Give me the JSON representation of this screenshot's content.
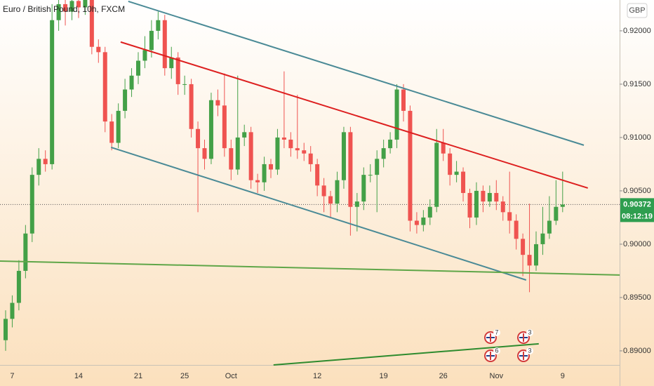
{
  "chart_data": {
    "type": "candlestick",
    "title": "Euro / British Pound, 10h, FXCM",
    "currency": "GBP",
    "categories": [
      null,
      "7",
      null,
      null,
      null,
      null,
      null,
      null,
      null,
      null,
      null,
      "14",
      null,
      null,
      null,
      null,
      null,
      null,
      null,
      null,
      "21",
      null,
      null,
      null,
      null,
      null,
      null,
      "25",
      null,
      null,
      null,
      null,
      null,
      null,
      "Oct",
      null,
      null,
      null,
      null,
      null,
      null,
      null,
      null,
      null,
      null,
      null,
      null,
      "12",
      null,
      null,
      null,
      null,
      null,
      null,
      null,
      null,
      null,
      "19",
      null,
      null,
      null,
      null,
      null,
      null,
      null,
      null,
      "26",
      null,
      null,
      null,
      null,
      null,
      null,
      null,
      "Nov",
      null,
      null,
      null,
      null,
      null,
      null,
      null,
      null,
      null,
      "9"
    ],
    "open": [
      0.891,
      0.893,
      0.8945,
      0.8975,
      0.901,
      0.9065,
      0.908,
      0.9075,
      0.921,
      0.9225,
      0.9218,
      0.9228,
      0.9222,
      0.923,
      0.9185,
      0.918,
      0.9115,
      0.9095,
      0.9125,
      0.9145,
      0.9158,
      0.9172,
      0.9182,
      0.92,
      0.921,
      0.9165,
      0.9175,
      0.915,
      0.915,
      0.9108,
      0.909,
      0.908,
      0.9135,
      0.913,
      0.909,
      0.907,
      0.91,
      0.9105,
      0.906,
      0.9058,
      0.9075,
      0.907,
      0.91,
      0.9098,
      0.909,
      0.9088,
      0.9085,
      0.9075,
      0.9055,
      0.9045,
      0.9038,
      0.906,
      0.9105,
      0.9035,
      0.904,
      0.9065,
      0.9065,
      0.908,
      0.909,
      0.9098,
      0.9145,
      0.9125,
      0.9022,
      0.9018,
      0.9025,
      0.9035,
      0.9095,
      0.9085,
      0.9065,
      0.9068,
      0.9048,
      0.9025,
      0.905,
      0.904,
      0.9048,
      0.904,
      0.903,
      0.9022,
      0.9005,
      0.899,
      0.898,
      0.9,
      0.901,
      0.9022,
      0.9035
    ],
    "high": [
      0.8938,
      0.8952,
      0.8985,
      0.9018,
      0.9072,
      0.909,
      0.9088,
      0.9225,
      0.9235,
      0.9232,
      0.9235,
      0.9233,
      0.9236,
      0.9235,
      0.9192,
      0.9185,
      0.9122,
      0.9132,
      0.9155,
      0.9165,
      0.918,
      0.9195,
      0.921,
      0.9218,
      0.9215,
      0.9185,
      0.918,
      0.9158,
      0.9155,
      0.9115,
      0.9098,
      0.9142,
      0.9145,
      0.916,
      0.9098,
      0.9158,
      0.9112,
      0.911,
      0.9066,
      0.9082,
      0.908,
      0.9108,
      0.9162,
      0.9105,
      0.914,
      0.9095,
      0.9092,
      0.908,
      0.9062,
      0.905,
      0.9068,
      0.911,
      0.911,
      0.9048,
      0.9072,
      0.9075,
      0.9088,
      0.9098,
      0.9105,
      0.915,
      0.915,
      0.913,
      0.903,
      0.9032,
      0.9042,
      0.9108,
      0.9108,
      0.909,
      0.9078,
      0.9072,
      0.9052,
      0.9058,
      0.9055,
      0.9055,
      0.906,
      0.9045,
      0.9068,
      0.9028,
      0.901,
      0.9038,
      0.9012,
      0.9035,
      0.9045,
      0.906,
      0.9068
    ],
    "low": [
      0.89,
      0.8922,
      0.8938,
      0.8968,
      0.9002,
      0.9055,
      0.9068,
      0.907,
      0.92,
      0.9205,
      0.921,
      0.9212,
      0.9215,
      0.9178,
      0.917,
      0.9105,
      0.9088,
      0.909,
      0.9118,
      0.9138,
      0.915,
      0.9165,
      0.9175,
      0.9192,
      0.9158,
      0.9155,
      0.914,
      0.914,
      0.91,
      0.903,
      0.907,
      0.9075,
      0.912,
      0.9082,
      0.906,
      0.9065,
      0.9092,
      0.9052,
      0.9048,
      0.905,
      0.9062,
      0.9065,
      0.909,
      0.9082,
      0.908,
      0.9078,
      0.9068,
      0.9045,
      0.903,
      0.9025,
      0.903,
      0.9052,
      0.9008,
      0.9012,
      0.9032,
      0.9058,
      0.903,
      0.9072,
      0.9085,
      0.909,
      0.9115,
      0.9012,
      0.901,
      0.9012,
      0.9018,
      0.903,
      0.9078,
      0.9055,
      0.9058,
      0.904,
      0.9015,
      0.9018,
      0.903,
      0.9035,
      0.9032,
      0.9022,
      0.901,
      0.8995,
      0.897,
      0.8955,
      0.8975,
      0.899,
      0.9005,
      0.9018,
      0.903
    ],
    "close": [
      0.893,
      0.8945,
      0.8975,
      0.901,
      0.9065,
      0.908,
      0.9075,
      0.921,
      0.9225,
      0.9218,
      0.9228,
      0.9222,
      0.923,
      0.9185,
      0.918,
      0.9115,
      0.9095,
      0.9125,
      0.9145,
      0.9158,
      0.9172,
      0.9182,
      0.92,
      0.921,
      0.9165,
      0.9175,
      0.915,
      0.915,
      0.9108,
      0.909,
      0.908,
      0.9135,
      0.913,
      0.909,
      0.907,
      0.91,
      0.9105,
      0.906,
      0.9058,
      0.9075,
      0.907,
      0.91,
      0.9098,
      0.909,
      0.9088,
      0.9085,
      0.9075,
      0.9055,
      0.9045,
      0.9038,
      0.906,
      0.9105,
      0.9035,
      0.904,
      0.9065,
      0.9065,
      0.908,
      0.909,
      0.9098,
      0.9145,
      0.9125,
      0.9022,
      0.9018,
      0.9025,
      0.9035,
      0.9095,
      0.9085,
      0.9065,
      0.9068,
      0.9048,
      0.9025,
      0.905,
      0.904,
      0.9048,
      0.904,
      0.903,
      0.9022,
      0.9005,
      0.899,
      0.898,
      0.9,
      0.901,
      0.9022,
      0.9035,
      0.90372
    ],
    "up_color": "#43a047",
    "down_color": "#ef5350",
    "ylim": [
      0.88868,
      0.92289
    ],
    "yticks": [
      {
        "value": 0.89,
        "label": "0.89000"
      },
      {
        "value": 0.895,
        "label": "0.89500"
      },
      {
        "value": 0.9,
        "label": "0.90000"
      },
      {
        "value": 0.905,
        "label": "0.90500"
      },
      {
        "value": 0.91,
        "label": "0.91000"
      },
      {
        "value": 0.915,
        "label": "0.91500"
      },
      {
        "value": 0.92,
        "label": "0.92000"
      }
    ],
    "last_price": 0.90372,
    "countdown": "08:12:19",
    "drawings": [
      {
        "color": "#4a8a96",
        "points": [
          [
            18.5,
            0.92276
          ],
          [
            87.2,
            0.90928
          ]
        ]
      },
      {
        "color": "#dd1f1f",
        "points": [
          [
            17.35,
            0.91895
          ],
          [
            87.8,
            0.90526
          ]
        ]
      },
      {
        "color": "#4a8a96",
        "points": [
          [
            15.9,
            0.90908
          ],
          [
            78.5,
            0.89664
          ]
        ]
      },
      {
        "color": "#5fa648",
        "points": [
          [
            -0.85,
            0.89842
          ],
          [
            92.6,
            0.89711
          ]
        ]
      },
      {
        "color": "#2e8b2e",
        "points": [
          [
            40.4,
            0.88868
          ],
          [
            80.4,
            0.89066
          ]
        ]
      }
    ],
    "events": [
      7,
      3,
      6,
      3
    ]
  }
}
